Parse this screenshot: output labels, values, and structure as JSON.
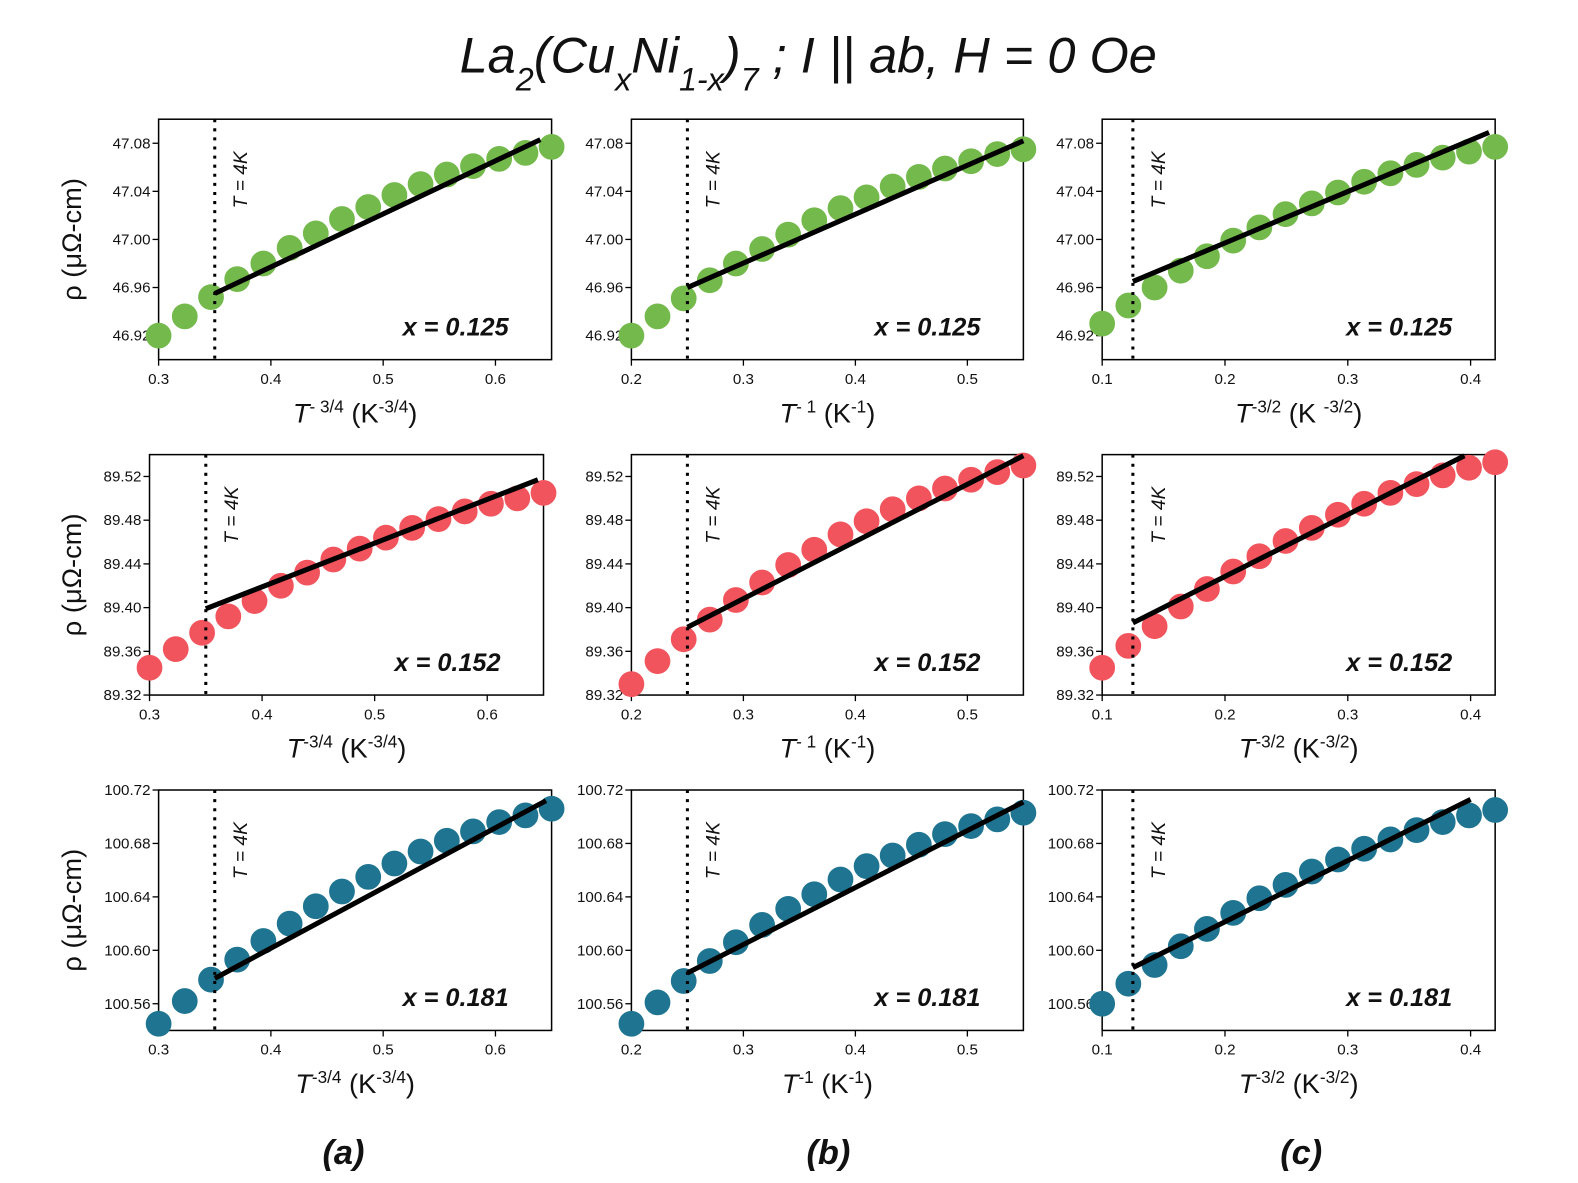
{
  "title_parts": [
    "La",
    "2",
    "(Cu",
    "x",
    "Ni",
    "1-x",
    ")",
    "7",
    " ; I || ab, H = 0 Oe"
  ],
  "panel_labels": [
    "(a)",
    "(b)",
    "(c)"
  ],
  "chart_data": [
    {
      "type": "scatter",
      "xlabel": [
        "T",
        "- 3/4",
        " (K",
        "-3/4",
        ")"
      ],
      "ylabel": "ρ (μΩ-cm)",
      "annotation": "T = 4K",
      "label": "x = 0.125",
      "vline": 0.35,
      "xlim": [
        0.3,
        0.65
      ],
      "ylim": [
        46.9,
        47.1
      ],
      "xticks": [
        0.3,
        0.4,
        0.5,
        0.6
      ],
      "yticks": [
        46.92,
        46.96,
        {
          "value": 47,
          "label": "47.00"
        },
        47.04,
        47.08
      ],
      "series": [
        {
          "kind": "markers",
          "color": "#74b94c",
          "x": [
            0.3,
            0.3233,
            0.3467,
            0.37,
            0.3933,
            0.4167,
            0.44,
            0.4633,
            0.4867,
            0.51,
            0.5333,
            0.5567,
            0.58,
            0.6033,
            0.6267,
            0.65
          ],
          "values": [
            46.92,
            46.936,
            46.952,
            46.967,
            46.98,
            46.993,
            47.005,
            47.017,
            47.027,
            47.037,
            47.046,
            47.054,
            47.061,
            47.067,
            47.072,
            47.077
          ]
        },
        {
          "kind": "line",
          "color": "#000000",
          "x": [
            0.35,
            0.64
          ],
          "values": [
            46.955,
            47.083
          ]
        }
      ]
    },
    {
      "type": "scatter",
      "xlabel": [
        "T",
        "- 1",
        " (K",
        "-1",
        ")"
      ],
      "annotation": "T = 4K",
      "label": "x = 0.125",
      "vline": 0.25,
      "xlim": [
        0.2,
        0.55
      ],
      "ylim": [
        46.9,
        47.1
      ],
      "xticks": [
        0.2,
        0.3,
        0.4,
        0.5
      ],
      "yticks": [
        46.92,
        46.96,
        {
          "value": 47,
          "label": "47.00"
        },
        47.04,
        47.08
      ],
      "series": [
        {
          "kind": "markers",
          "color": "#74b94c",
          "x": [
            0.2,
            0.2233,
            0.2467,
            0.27,
            0.2933,
            0.3167,
            0.34,
            0.3633,
            0.3867,
            0.41,
            0.4333,
            0.4567,
            0.48,
            0.5033,
            0.5267,
            0.55
          ],
          "values": [
            46.92,
            46.936,
            46.951,
            46.966,
            46.98,
            46.992,
            47.004,
            47.016,
            47.026,
            47.035,
            47.044,
            47.052,
            47.059,
            47.065,
            47.071,
            47.075
          ]
        },
        {
          "kind": "line",
          "color": "#000000",
          "x": [
            0.25,
            0.55
          ],
          "values": [
            46.96,
            47.082
          ]
        }
      ]
    },
    {
      "type": "scatter",
      "xlabel": [
        "T",
        "-3/2",
        " (K ",
        "-3/2",
        ")"
      ],
      "annotation": "T = 4K",
      "label": "x = 0.125",
      "vline": 0.125,
      "xlim": [
        0.1,
        0.42
      ],
      "ylim": [
        46.9,
        47.1
      ],
      "xticks": [
        0.1,
        0.2,
        0.3,
        0.4
      ],
      "yticks": [
        46.92,
        46.96,
        {
          "value": 47,
          "label": "47.00"
        },
        47.04,
        47.08
      ],
      "series": [
        {
          "kind": "markers",
          "color": "#74b94c",
          "x": [
            0.1,
            0.1213,
            0.1427,
            0.164,
            0.1853,
            0.2067,
            0.228,
            0.2493,
            0.2707,
            0.292,
            0.3133,
            0.3347,
            0.356,
            0.3773,
            0.3987,
            0.42
          ],
          "values": [
            46.93,
            46.945,
            46.96,
            46.974,
            46.986,
            46.999,
            47.01,
            47.021,
            47.03,
            47.039,
            47.048,
            47.055,
            47.062,
            47.068,
            47.073,
            47.077
          ]
        },
        {
          "kind": "line",
          "color": "#000000",
          "x": [
            0.125,
            0.415
          ],
          "values": [
            46.965,
            47.089
          ]
        }
      ]
    },
    {
      "type": "scatter",
      "xlabel": [
        "T",
        "-3/4",
        " (K",
        "-3/4",
        ")"
      ],
      "ylabel": "ρ (μΩ-cm)",
      "annotation": "T = 4K",
      "label": "x = 0.152",
      "vline": 0.35,
      "xlim": [
        0.3,
        0.65
      ],
      "ylim": [
        89.32,
        89.54
      ],
      "xticks": [
        0.3,
        0.4,
        0.5,
        0.6
      ],
      "yticks": [
        89.32,
        89.36,
        {
          "value": 89.4,
          "label": "89.40"
        },
        89.44,
        89.48,
        89.52
      ],
      "series": [
        {
          "kind": "markers",
          "color": "#f2545d",
          "x": [
            0.3,
            0.3233,
            0.3467,
            0.37,
            0.3933,
            0.4167,
            0.44,
            0.4633,
            0.4867,
            0.51,
            0.5333,
            0.5567,
            0.58,
            0.6033,
            0.6267,
            0.65
          ],
          "values": [
            89.345,
            89.362,
            89.377,
            89.392,
            89.406,
            89.42,
            89.432,
            89.444,
            89.454,
            89.464,
            89.473,
            89.481,
            89.488,
            89.495,
            89.5,
            89.505
          ]
        },
        {
          "kind": "line",
          "color": "#000000",
          "x": [
            0.35,
            0.645
          ],
          "values": [
            89.399,
            89.517
          ]
        }
      ]
    },
    {
      "type": "scatter",
      "xlabel": [
        "T",
        "- 1",
        " (K",
        "-1",
        ")"
      ],
      "annotation": "T = 4K",
      "label": "x = 0.152",
      "vline": 0.25,
      "xlim": [
        0.2,
        0.55
      ],
      "ylim": [
        89.32,
        89.54
      ],
      "xticks": [
        0.2,
        0.3,
        0.4,
        0.5
      ],
      "yticks": [
        89.32,
        89.36,
        {
          "value": 89.4,
          "label": "89.40"
        },
        89.44,
        89.48,
        89.52
      ],
      "series": [
        {
          "kind": "markers",
          "color": "#f2545d",
          "x": [
            0.2,
            0.2233,
            0.2467,
            0.27,
            0.2933,
            0.3167,
            0.34,
            0.3633,
            0.3867,
            0.41,
            0.4333,
            0.4567,
            0.48,
            0.5033,
            0.5267,
            0.55
          ],
          "values": [
            89.33,
            89.351,
            89.371,
            89.389,
            89.407,
            89.423,
            89.439,
            89.453,
            89.467,
            89.479,
            89.49,
            89.5,
            89.509,
            89.517,
            89.524,
            89.53
          ]
        },
        {
          "kind": "line",
          "color": "#000000",
          "x": [
            0.25,
            0.55
          ],
          "values": [
            89.382,
            89.539
          ]
        }
      ]
    },
    {
      "type": "scatter",
      "xlabel": [
        "T",
        "-3/2",
        " (K",
        "-3/2",
        ")"
      ],
      "annotation": "T = 4K",
      "label": "x = 0.152",
      "vline": 0.125,
      "xlim": [
        0.1,
        0.42
      ],
      "ylim": [
        89.32,
        89.54
      ],
      "xticks": [
        0.1,
        0.2,
        0.3,
        0.4
      ],
      "yticks": [
        89.32,
        89.36,
        {
          "value": 89.4,
          "label": "89.40"
        },
        89.44,
        89.48,
        89.52
      ],
      "series": [
        {
          "kind": "markers",
          "color": "#f2545d",
          "x": [
            0.1,
            0.1213,
            0.1427,
            0.164,
            0.1853,
            0.2067,
            0.228,
            0.2493,
            0.2707,
            0.292,
            0.3133,
            0.3347,
            0.356,
            0.3773,
            0.3987,
            0.42
          ],
          "values": [
            89.345,
            89.365,
            89.383,
            89.401,
            89.417,
            89.433,
            89.447,
            89.461,
            89.473,
            89.485,
            89.495,
            89.505,
            89.513,
            89.521,
            89.528,
            89.533
          ]
        },
        {
          "kind": "line",
          "color": "#000000",
          "x": [
            0.125,
            0.395
          ],
          "values": [
            89.386,
            89.539
          ]
        }
      ]
    },
    {
      "type": "scatter",
      "xlabel": [
        "T",
        "-3/4",
        " (K",
        "-3/4",
        ")"
      ],
      "ylabel": "ρ (μΩ-cm)",
      "annotation": "T = 4K",
      "label": "x = 0.181",
      "vline": 0.35,
      "xlim": [
        0.3,
        0.65
      ],
      "ylim": [
        100.54,
        100.72
      ],
      "xticks": [
        0.3,
        0.4,
        0.5,
        0.6
      ],
      "yticks": [
        100.56,
        {
          "value": 100.6,
          "label": "100.60"
        },
        100.64,
        100.68,
        100.72
      ],
      "series": [
        {
          "kind": "markers",
          "color": "#1f7591",
          "x": [
            0.3,
            0.3233,
            0.3467,
            0.37,
            0.3933,
            0.4167,
            0.44,
            0.4633,
            0.4867,
            0.51,
            0.5333,
            0.5567,
            0.58,
            0.6033,
            0.6267,
            0.65
          ],
          "values": [
            100.545,
            100.562,
            100.578,
            100.593,
            100.607,
            100.62,
            100.633,
            100.644,
            100.655,
            100.665,
            100.674,
            100.682,
            100.689,
            100.696,
            100.701,
            100.706
          ]
        },
        {
          "kind": "line",
          "color": "#000000",
          "x": [
            0.35,
            0.645
          ],
          "values": [
            100.579,
            100.712
          ]
        }
      ]
    },
    {
      "type": "scatter",
      "xlabel": [
        "T",
        "-1",
        " (K",
        "-1",
        ")"
      ],
      "annotation": "T = 4K",
      "label": "x = 0.181",
      "vline": 0.25,
      "xlim": [
        0.2,
        0.55
      ],
      "ylim": [
        100.54,
        100.72
      ],
      "xticks": [
        0.2,
        0.3,
        0.4,
        0.5
      ],
      "yticks": [
        100.56,
        {
          "value": 100.6,
          "label": "100.60"
        },
        100.64,
        100.68,
        100.72
      ],
      "series": [
        {
          "kind": "markers",
          "color": "#1f7591",
          "x": [
            0.2,
            0.2233,
            0.2467,
            0.27,
            0.2933,
            0.3167,
            0.34,
            0.3633,
            0.3867,
            0.41,
            0.4333,
            0.4567,
            0.48,
            0.5033,
            0.5267,
            0.55
          ],
          "values": [
            100.545,
            100.561,
            100.577,
            100.592,
            100.606,
            100.619,
            100.631,
            100.642,
            100.653,
            100.663,
            100.671,
            100.679,
            100.687,
            100.693,
            100.698,
            100.703
          ]
        },
        {
          "kind": "line",
          "color": "#000000",
          "x": [
            0.25,
            0.55
          ],
          "values": [
            100.583,
            100.711
          ]
        }
      ]
    },
    {
      "type": "scatter",
      "xlabel": [
        "T",
        "-3/2",
        " (K",
        "-3/2",
        ")"
      ],
      "annotation": "T = 4K",
      "label": "x = 0.181",
      "vline": 0.125,
      "xlim": [
        0.1,
        0.42
      ],
      "ylim": [
        100.54,
        100.72
      ],
      "xticks": [
        0.1,
        0.2,
        0.3,
        0.4
      ],
      "yticks": [
        100.56,
        {
          "value": 100.6,
          "label": "100.60"
        },
        100.64,
        100.68,
        100.72
      ],
      "series": [
        {
          "kind": "markers",
          "color": "#1f7591",
          "x": [
            0.1,
            0.1213,
            0.1427,
            0.164,
            0.1853,
            0.2067,
            0.228,
            0.2493,
            0.2707,
            0.292,
            0.3133,
            0.3347,
            0.356,
            0.3773,
            0.3987,
            0.42
          ],
          "values": [
            100.56,
            100.575,
            100.589,
            100.603,
            100.616,
            100.628,
            100.639,
            100.649,
            100.659,
            100.668,
            100.676,
            100.683,
            100.69,
            100.696,
            100.701,
            100.705
          ]
        },
        {
          "kind": "line",
          "color": "#000000",
          "x": [
            0.125,
            0.4
          ],
          "values": [
            100.587,
            100.713
          ]
        }
      ]
    }
  ]
}
